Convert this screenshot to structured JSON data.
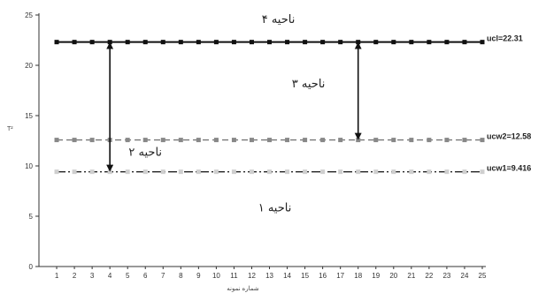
{
  "chart_data": {
    "type": "line",
    "title": "",
    "xlabel": "شماره نمونه",
    "ylabel": "T²",
    "x": [
      1,
      2,
      3,
      4,
      5,
      6,
      7,
      8,
      9,
      10,
      11,
      12,
      13,
      14,
      15,
      16,
      17,
      18,
      19,
      20,
      21,
      22,
      23,
      24,
      25
    ],
    "xlim": [
      0,
      25
    ],
    "ylim": [
      0,
      25
    ],
    "yticks": [
      0,
      5,
      10,
      15,
      20,
      25
    ],
    "grid": false,
    "legend": "none",
    "series": [
      {
        "label": "ucl=22.31",
        "value": 22.31,
        "style": "solid",
        "color": "#111111",
        "marker": "#111111"
      },
      {
        "label": "ucw2=12.58",
        "value": 12.58,
        "style": "dashed",
        "color": "#777777",
        "marker": "#888888"
      },
      {
        "label": "ucw1=9.416",
        "value": 9.416,
        "style": "dashdot",
        "color": "#222222",
        "marker": "#cfcfcf"
      }
    ],
    "arrows": [
      {
        "x": 4,
        "from": 22.31,
        "to": 9.416
      },
      {
        "x": 18,
        "from": 22.31,
        "to": 12.58
      }
    ],
    "regions": [
      {
        "text": "ناحیه ۴",
        "x": 13.5,
        "y": 24.2
      },
      {
        "text": "ناحیه ۳",
        "x": 15.2,
        "y": 17.8
      },
      {
        "text": "ناحیه ۲",
        "x": 6.0,
        "y": 11.0
      },
      {
        "text": "ناحیه ۱",
        "x": 13.3,
        "y": 5.5
      }
    ]
  }
}
